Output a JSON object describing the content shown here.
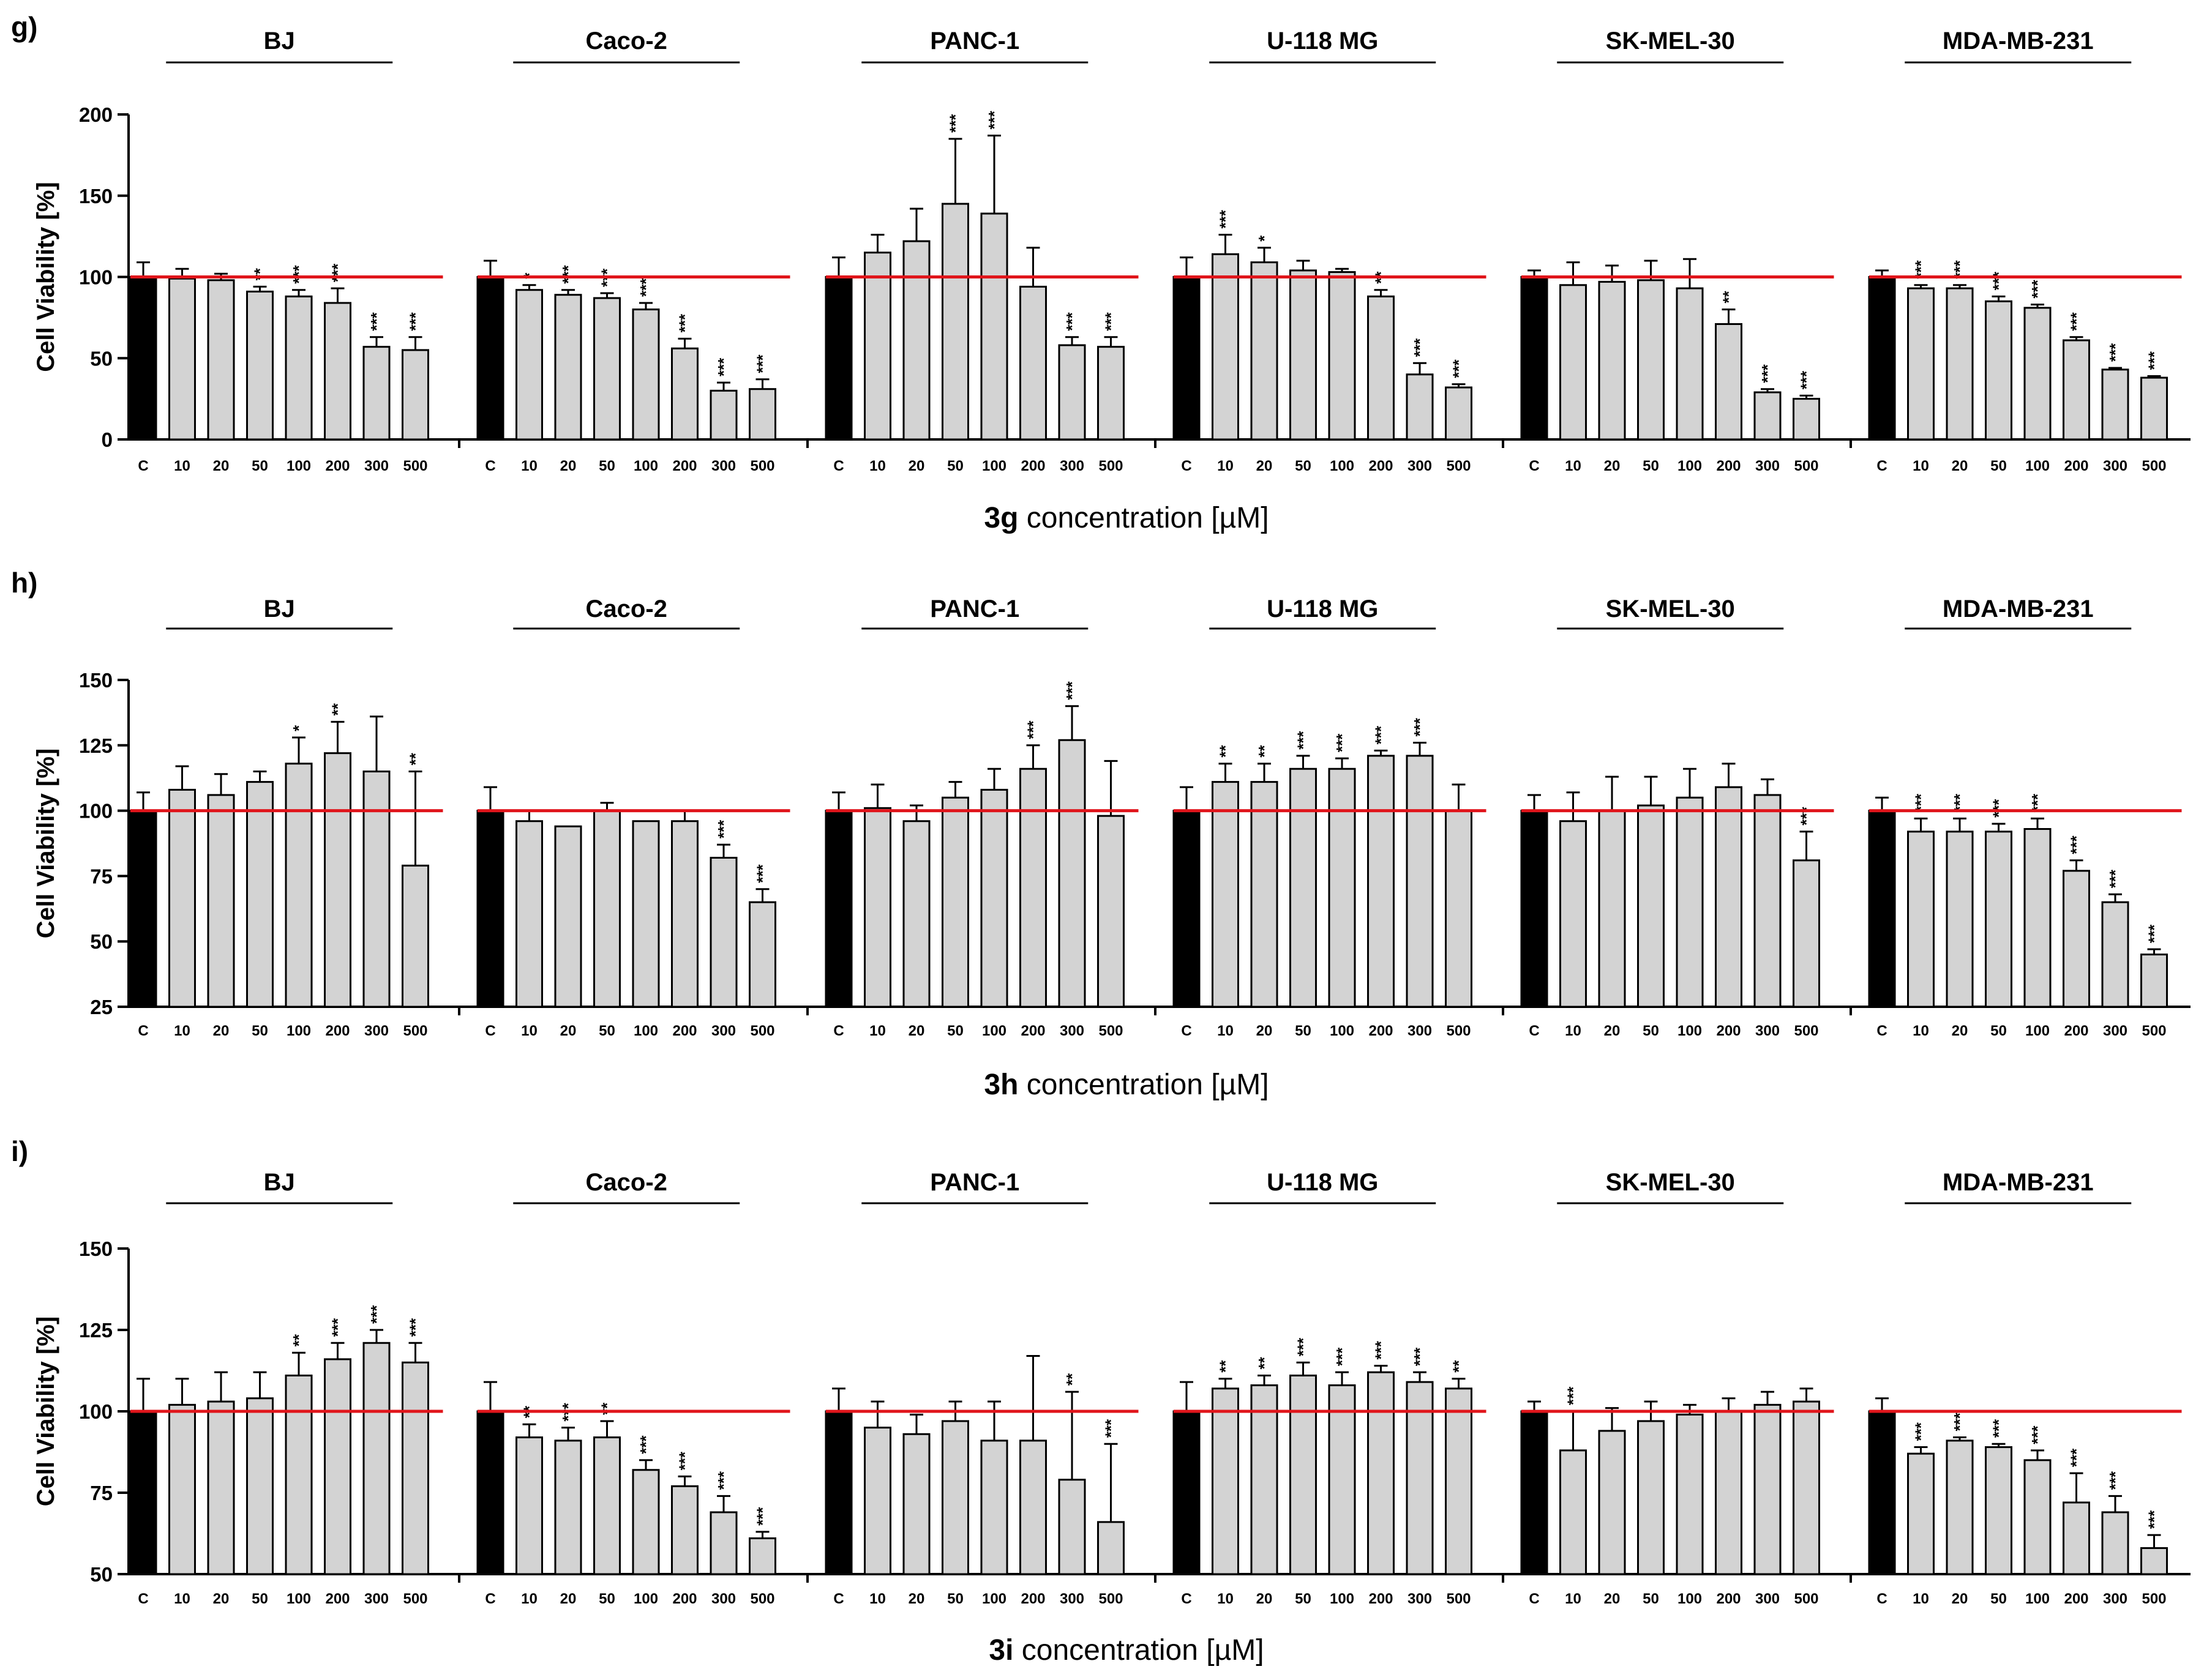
{
  "chart_data": [
    {
      "panel": "g)",
      "type": "bar",
      "compound": "3g",
      "xlabel_suffix": " concentration [µM]",
      "ylabel": "Cell Viability [%]",
      "ylim": [
        0,
        200
      ],
      "yticks": [
        0,
        50,
        100,
        150,
        200
      ],
      "reference_line": 100,
      "categories": [
        "C",
        "10",
        "20",
        "50",
        "100",
        "200",
        "300",
        "500"
      ],
      "groups": [
        {
          "name": "BJ",
          "values": [
            100,
            99,
            98,
            91,
            88,
            84,
            57,
            55
          ],
          "errors": [
            9,
            6,
            4,
            3,
            4,
            9,
            6,
            8
          ],
          "sig": [
            "",
            "",
            "",
            "**",
            "***",
            "***",
            "***",
            "***"
          ]
        },
        {
          "name": "Caco-2",
          "values": [
            100,
            92,
            89,
            87,
            80,
            56,
            30,
            31
          ],
          "errors": [
            10,
            3,
            3,
            3,
            4,
            6,
            5,
            6
          ],
          "sig": [
            "",
            "*",
            "***",
            "***",
            "***",
            "***",
            "***",
            "***"
          ]
        },
        {
          "name": "PANC-1",
          "values": [
            100,
            115,
            122,
            145,
            139,
            94,
            58,
            57
          ],
          "errors": [
            12,
            11,
            20,
            40,
            48,
            24,
            5,
            6
          ],
          "sig": [
            "",
            "",
            "",
            "***",
            "***",
            "",
            "***",
            "***"
          ]
        },
        {
          "name": "U-118 MG",
          "values": [
            100,
            114,
            109,
            104,
            103,
            88,
            40,
            32
          ],
          "errors": [
            12,
            12,
            9,
            6,
            2,
            4,
            7,
            2
          ],
          "sig": [
            "",
            "***",
            "*",
            "",
            "",
            "**",
            "***",
            "***"
          ]
        },
        {
          "name": "SK-MEL-30",
          "values": [
            100,
            95,
            97,
            98,
            93,
            71,
            29,
            25
          ],
          "errors": [
            4,
            14,
            10,
            12,
            18,
            9,
            2,
            2
          ],
          "sig": [
            "",
            "",
            "",
            "",
            "",
            "**",
            "***",
            "***"
          ]
        },
        {
          "name": "MDA-MB-231",
          "values": [
            100,
            93,
            93,
            85,
            81,
            61,
            43,
            38
          ],
          "errors": [
            4,
            2,
            2,
            3,
            2,
            2,
            1,
            1
          ],
          "sig": [
            "",
            "***",
            "***",
            "***",
            "***",
            "***",
            "***",
            "***"
          ]
        }
      ]
    },
    {
      "panel": "h)",
      "type": "bar",
      "compound": "3h",
      "xlabel_suffix": " concentration [µM]",
      "ylabel": "Cell Viability [%]",
      "ylim": [
        25,
        150
      ],
      "yticks": [
        25,
        50,
        75,
        100,
        125,
        150
      ],
      "reference_line": 100,
      "categories": [
        "C",
        "10",
        "20",
        "50",
        "100",
        "200",
        "300",
        "500"
      ],
      "groups": [
        {
          "name": "BJ",
          "values": [
            100,
            108,
            106,
            111,
            118,
            122,
            115,
            79
          ],
          "errors": [
            7,
            9,
            8,
            4,
            10,
            12,
            21,
            36
          ],
          "sig": [
            "",
            "",
            "",
            "",
            "*",
            "**",
            "",
            "**"
          ]
        },
        {
          "name": "Caco-2",
          "values": [
            100,
            96,
            94,
            100,
            96,
            96,
            82,
            65
          ],
          "errors": [
            9,
            4,
            0,
            3,
            0,
            4,
            5,
            5
          ],
          "sig": [
            "",
            "",
            "",
            "",
            "",
            "",
            "***",
            "***"
          ]
        },
        {
          "name": "PANC-1",
          "values": [
            100,
            101,
            96,
            105,
            108,
            116,
            127,
            98
          ],
          "errors": [
            7,
            9,
            6,
            6,
            8,
            9,
            13,
            21
          ],
          "sig": [
            "",
            "",
            "",
            "",
            "",
            "***",
            "***",
            ""
          ]
        },
        {
          "name": "U-118 MG",
          "values": [
            100,
            111,
            111,
            116,
            116,
            121,
            121,
            100
          ],
          "errors": [
            9,
            7,
            7,
            5,
            4,
            2,
            5,
            10
          ],
          "sig": [
            "",
            "**",
            "**",
            "***",
            "***",
            "***",
            "***",
            ""
          ]
        },
        {
          "name": "SK-MEL-30",
          "values": [
            100,
            96,
            100,
            102,
            105,
            109,
            106,
            81
          ],
          "errors": [
            6,
            11,
            13,
            11,
            11,
            9,
            6,
            11
          ],
          "sig": [
            "",
            "",
            "",
            "",
            "",
            "",
            "",
            "***"
          ]
        },
        {
          "name": "MDA-MB-231",
          "values": [
            100,
            92,
            92,
            92,
            93,
            77,
            65,
            45
          ],
          "errors": [
            5,
            5,
            5,
            3,
            4,
            4,
            3,
            2
          ],
          "sig": [
            "",
            "***",
            "***",
            "***",
            "***",
            "***",
            "***",
            "***"
          ]
        }
      ]
    },
    {
      "panel": "i)",
      "type": "bar",
      "compound": "3i",
      "xlabel_suffix": " concentration [µM]",
      "ylabel": "Cell Viability [%]",
      "ylim": [
        50,
        150
      ],
      "yticks": [
        50,
        75,
        100,
        125,
        150
      ],
      "reference_line": 100,
      "categories": [
        "C",
        "10",
        "20",
        "50",
        "100",
        "200",
        "300",
        "500"
      ],
      "groups": [
        {
          "name": "BJ",
          "values": [
            100,
            102,
            103,
            104,
            111,
            116,
            121,
            115
          ],
          "errors": [
            10,
            8,
            9,
            8,
            7,
            5,
            4,
            6
          ],
          "sig": [
            "",
            "",
            "",
            "",
            "**",
            "***",
            "***",
            "***"
          ]
        },
        {
          "name": "Caco-2",
          "values": [
            100,
            92,
            91,
            92,
            82,
            77,
            69,
            61
          ],
          "errors": [
            9,
            4,
            4,
            5,
            3,
            3,
            5,
            2
          ],
          "sig": [
            "",
            "**",
            "***",
            "**",
            "***",
            "***",
            "***",
            "***"
          ]
        },
        {
          "name": "PANC-1",
          "values": [
            100,
            95,
            93,
            97,
            91,
            91,
            79,
            66
          ],
          "errors": [
            7,
            8,
            6,
            6,
            12,
            26,
            27,
            24
          ],
          "sig": [
            "",
            "",
            "",
            "",
            "",
            "",
            "**",
            "***"
          ]
        },
        {
          "name": "U-118 MG",
          "values": [
            100,
            107,
            108,
            111,
            108,
            112,
            109,
            107
          ],
          "errors": [
            9,
            3,
            3,
            4,
            4,
            2,
            3,
            3
          ],
          "sig": [
            "",
            "**",
            "**",
            "***",
            "***",
            "***",
            "***",
            "**"
          ]
        },
        {
          "name": "SK-MEL-30",
          "values": [
            100,
            88,
            94,
            97,
            99,
            100,
            102,
            103
          ],
          "errors": [
            3,
            12,
            7,
            6,
            3,
            4,
            4,
            4
          ],
          "sig": [
            "",
            "***",
            "",
            "",
            "",
            "",
            "",
            ""
          ]
        },
        {
          "name": "MDA-MB-231",
          "values": [
            100,
            87,
            91,
            89,
            85,
            72,
            69,
            58
          ],
          "errors": [
            4,
            2,
            1,
            1,
            3,
            9,
            5,
            4
          ],
          "sig": [
            "",
            "***",
            "***",
            "***",
            "***",
            "***",
            "***",
            "***"
          ]
        }
      ]
    }
  ],
  "colors": {
    "control_bar": "#000000",
    "treatment_bar": "#d3d3d3",
    "reference_line": "#e0151b",
    "axis": "#000000"
  }
}
